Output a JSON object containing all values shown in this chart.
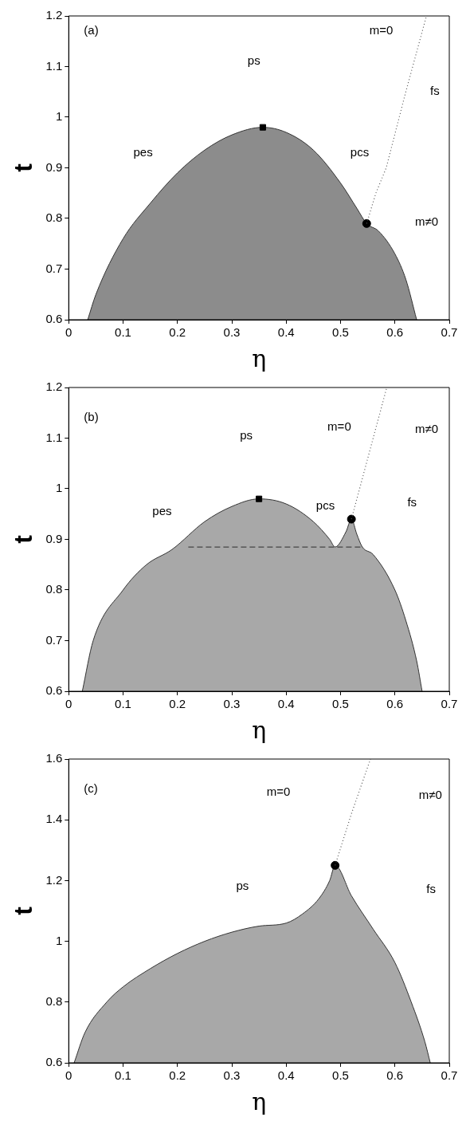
{
  "chart_data": [
    {
      "type": "area",
      "xlabel": "η",
      "ylabel": "t",
      "xlim": [
        0,
        0.7
      ],
      "ylim": [
        0.6,
        1.2
      ],
      "xticks": [
        0,
        0.1,
        0.2,
        0.3,
        0.4,
        0.5,
        0.6,
        0.7
      ],
      "yticks": [
        0.6,
        0.7,
        0.8,
        0.9,
        1,
        1.1,
        1.2
      ],
      "grid": false,
      "legend": false,
      "series": [
        {
          "color": "#8c8c8c",
          "x": [
            0.035,
            0.05,
            0.1,
            0.15,
            0.2,
            0.25,
            0.3,
            0.357,
            0.4,
            0.45,
            0.5,
            0.53,
            0.548,
            0.57,
            0.6,
            0.62,
            0.64
          ],
          "values": [
            0.6,
            0.65,
            0.76,
            0.83,
            0.89,
            0.935,
            0.965,
            0.98,
            0.97,
            0.935,
            0.87,
            0.82,
            0.79,
            0.775,
            0.73,
            0.68,
            0.6
          ]
        },
        {
          "type": "line",
          "color": "#555555",
          "line_style": "dotted",
          "x": [
            0.548,
            0.565,
            0.584,
            0.62,
            0.658
          ],
          "values": [
            0.79,
            0.85,
            0.9,
            1.05,
            1.2
          ]
        },
        {
          "type": "scatter",
          "color": "#000000",
          "marker": "square",
          "x": [
            0.357
          ],
          "values": [
            0.98
          ]
        },
        {
          "type": "scatter",
          "color": "#000000",
          "marker": "circle",
          "x": [
            0.548
          ],
          "values": [
            0.79
          ]
        }
      ],
      "annotations": [
        "(a)",
        "ps",
        "m=0",
        "fs",
        "pes",
        "pcs",
        "m≠0"
      ]
    },
    {
      "type": "area",
      "xlabel": "η",
      "ylabel": "t",
      "xlim": [
        0,
        0.7
      ],
      "ylim": [
        0.6,
        1.2
      ],
      "xticks": [
        0,
        0.1,
        0.2,
        0.3,
        0.4,
        0.5,
        0.6,
        0.7
      ],
      "yticks": [
        0.6,
        0.7,
        0.8,
        0.9,
        1,
        1.1,
        1.2
      ],
      "grid": false,
      "legend": false,
      "series": [
        {
          "color": "#a8a8a8",
          "x": [
            0.025,
            0.045,
            0.1,
            0.143,
            0.19,
            0.25,
            0.3,
            0.35,
            0.4,
            0.45,
            0.48,
            0.49,
            0.51,
            0.52,
            0.53,
            0.54,
            0.56,
            0.6,
            0.62,
            0.64,
            0.65
          ],
          "values": [
            0.6,
            0.7,
            0.8,
            0.85,
            0.88,
            0.935,
            0.965,
            0.98,
            0.97,
            0.935,
            0.9,
            0.885,
            0.915,
            0.94,
            0.91,
            0.885,
            0.87,
            0.8,
            0.74,
            0.66,
            0.6
          ]
        },
        {
          "type": "line",
          "color": "#444444",
          "line_style": "dashed",
          "x": [
            0.22,
            0.54
          ],
          "values": [
            0.885,
            0.885
          ]
        },
        {
          "type": "line",
          "color": "#555555",
          "line_style": "dotted",
          "x": [
            0.52,
            0.55,
            0.585
          ],
          "values": [
            0.94,
            1.06,
            1.2
          ]
        },
        {
          "type": "scatter",
          "color": "#000000",
          "marker": "square",
          "x": [
            0.35
          ],
          "values": [
            0.98
          ]
        },
        {
          "type": "scatter",
          "color": "#000000",
          "marker": "circle",
          "x": [
            0.52
          ],
          "values": [
            0.94
          ]
        }
      ],
      "annotations": [
        "(b)",
        "ps",
        "m=0",
        "m≠0",
        "pes",
        "pcs",
        "fs"
      ]
    },
    {
      "type": "area",
      "xlabel": "η",
      "ylabel": "t",
      "xlim": [
        0,
        0.7
      ],
      "ylim": [
        0.6,
        1.6
      ],
      "xticks": [
        0,
        0.1,
        0.2,
        0.3,
        0.4,
        0.5,
        0.6,
        0.7
      ],
      "yticks": [
        0.6,
        0.8,
        1,
        1.2,
        1.4,
        1.6
      ],
      "grid": false,
      "legend": false,
      "series": [
        {
          "color": "#a8a8a8",
          "x": [
            0.01,
            0.03,
            0.07,
            0.1,
            0.15,
            0.2,
            0.25,
            0.3,
            0.35,
            0.4,
            0.43,
            0.46,
            0.48,
            0.49,
            0.52,
            0.56,
            0.6,
            0.63,
            0.655,
            0.665
          ],
          "values": [
            0.6,
            0.7,
            0.8,
            0.85,
            0.91,
            0.96,
            1.0,
            1.03,
            1.05,
            1.06,
            1.09,
            1.14,
            1.2,
            1.25,
            1.15,
            1.04,
            0.93,
            0.8,
            0.67,
            0.6
          ]
        },
        {
          "type": "line",
          "color": "#555555",
          "line_style": "dotted",
          "x": [
            0.49,
            0.52,
            0.555
          ],
          "values": [
            1.25,
            1.42,
            1.6
          ]
        },
        {
          "type": "scatter",
          "color": "#000000",
          "marker": "circle",
          "x": [
            0.49
          ],
          "values": [
            1.25
          ]
        }
      ],
      "annotations": [
        "(c)",
        "m=0",
        "m≠0",
        "ps",
        "fs"
      ]
    }
  ]
}
